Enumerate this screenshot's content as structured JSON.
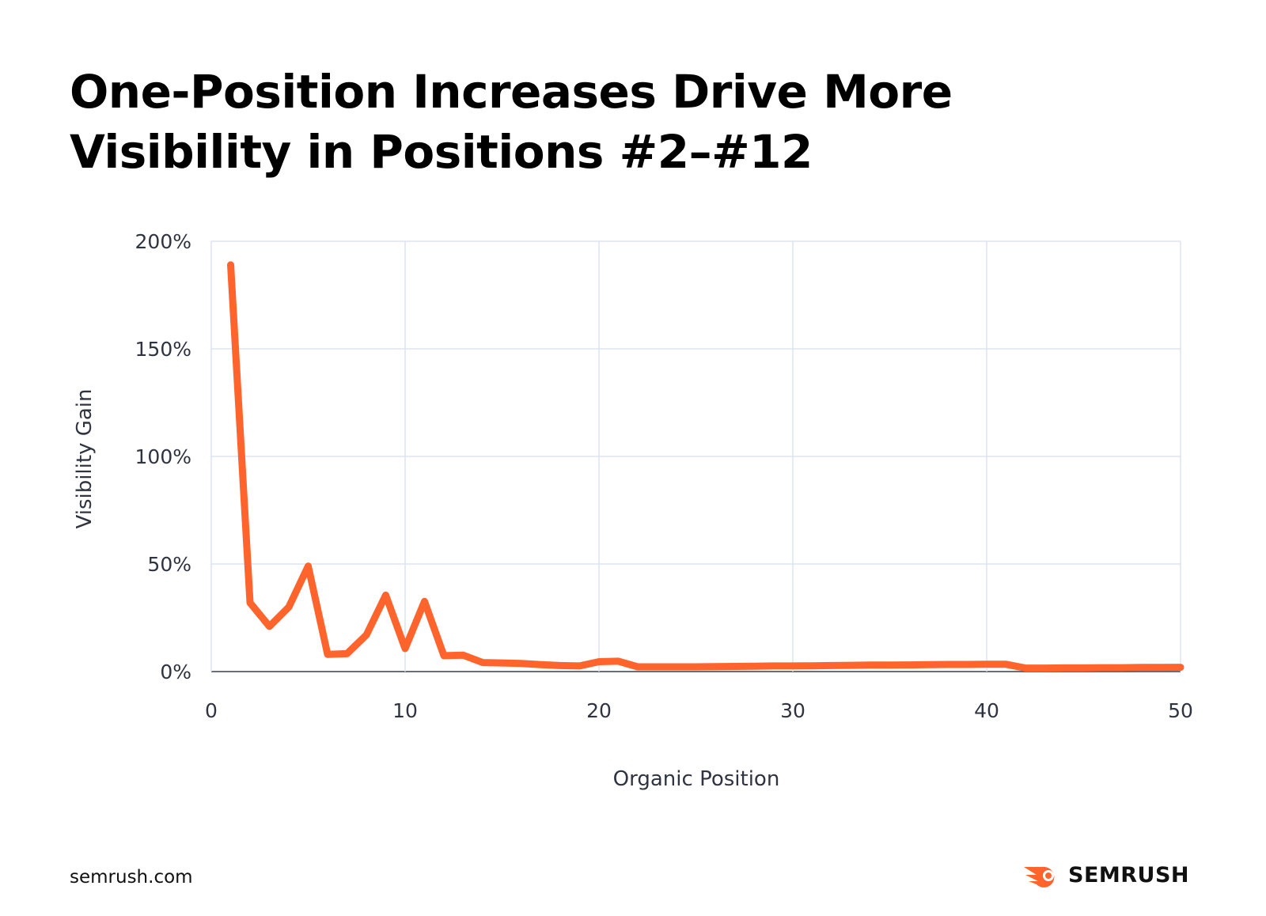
{
  "title_line1": "One-Position Increases Drive More",
  "title_line2": "Visibility in Positions #2–#12",
  "footer": "semrush.com",
  "brand": {
    "name": "SEMRUSH",
    "color": "#FF642D"
  },
  "chart_data": {
    "type": "line",
    "title": "One-Position Increases Drive More Visibility in Positions #2–#12",
    "xlabel": "Organic Position",
    "ylabel": "Visibility Gain",
    "xlim": [
      0,
      50
    ],
    "ylim": [
      0,
      200
    ],
    "xticks": [
      0,
      10,
      20,
      30,
      40,
      50
    ],
    "xtick_labels": [
      "0",
      "10",
      "20",
      "30",
      "40",
      "50"
    ],
    "yticks": [
      0,
      50,
      100,
      150,
      200
    ],
    "ytick_labels": [
      "0%",
      "50%",
      "100%",
      "150%",
      "200%"
    ],
    "grid": true,
    "line_color": "#FF642D",
    "x": [
      1,
      2,
      3,
      4,
      5,
      6,
      7,
      8,
      9,
      10,
      11,
      12,
      13,
      14,
      15,
      16,
      17,
      18,
      19,
      20,
      21,
      22,
      23,
      24,
      25,
      26,
      27,
      28,
      29,
      30,
      31,
      32,
      33,
      34,
      35,
      36,
      37,
      38,
      39,
      40,
      41,
      42,
      43,
      44,
      45,
      46,
      47,
      48,
      49,
      50
    ],
    "y": [
      189,
      32,
      21,
      30,
      49,
      8,
      8.3,
      17,
      35.5,
      10.7,
      32.6,
      7.4,
      7.6,
      4.2,
      4,
      3.8,
      3.2,
      2.8,
      2.6,
      4.6,
      4.8,
      2.2,
      2.2,
      2.2,
      2.2,
      2.3,
      2.4,
      2.5,
      2.6,
      2.6,
      2.7,
      2.8,
      2.9,
      3,
      3,
      3.1,
      3.2,
      3.3,
      3.3,
      3.4,
      3.4,
      1.6,
      1.6,
      1.7,
      1.7,
      1.8,
      1.8,
      1.9,
      1.9,
      2
    ]
  }
}
